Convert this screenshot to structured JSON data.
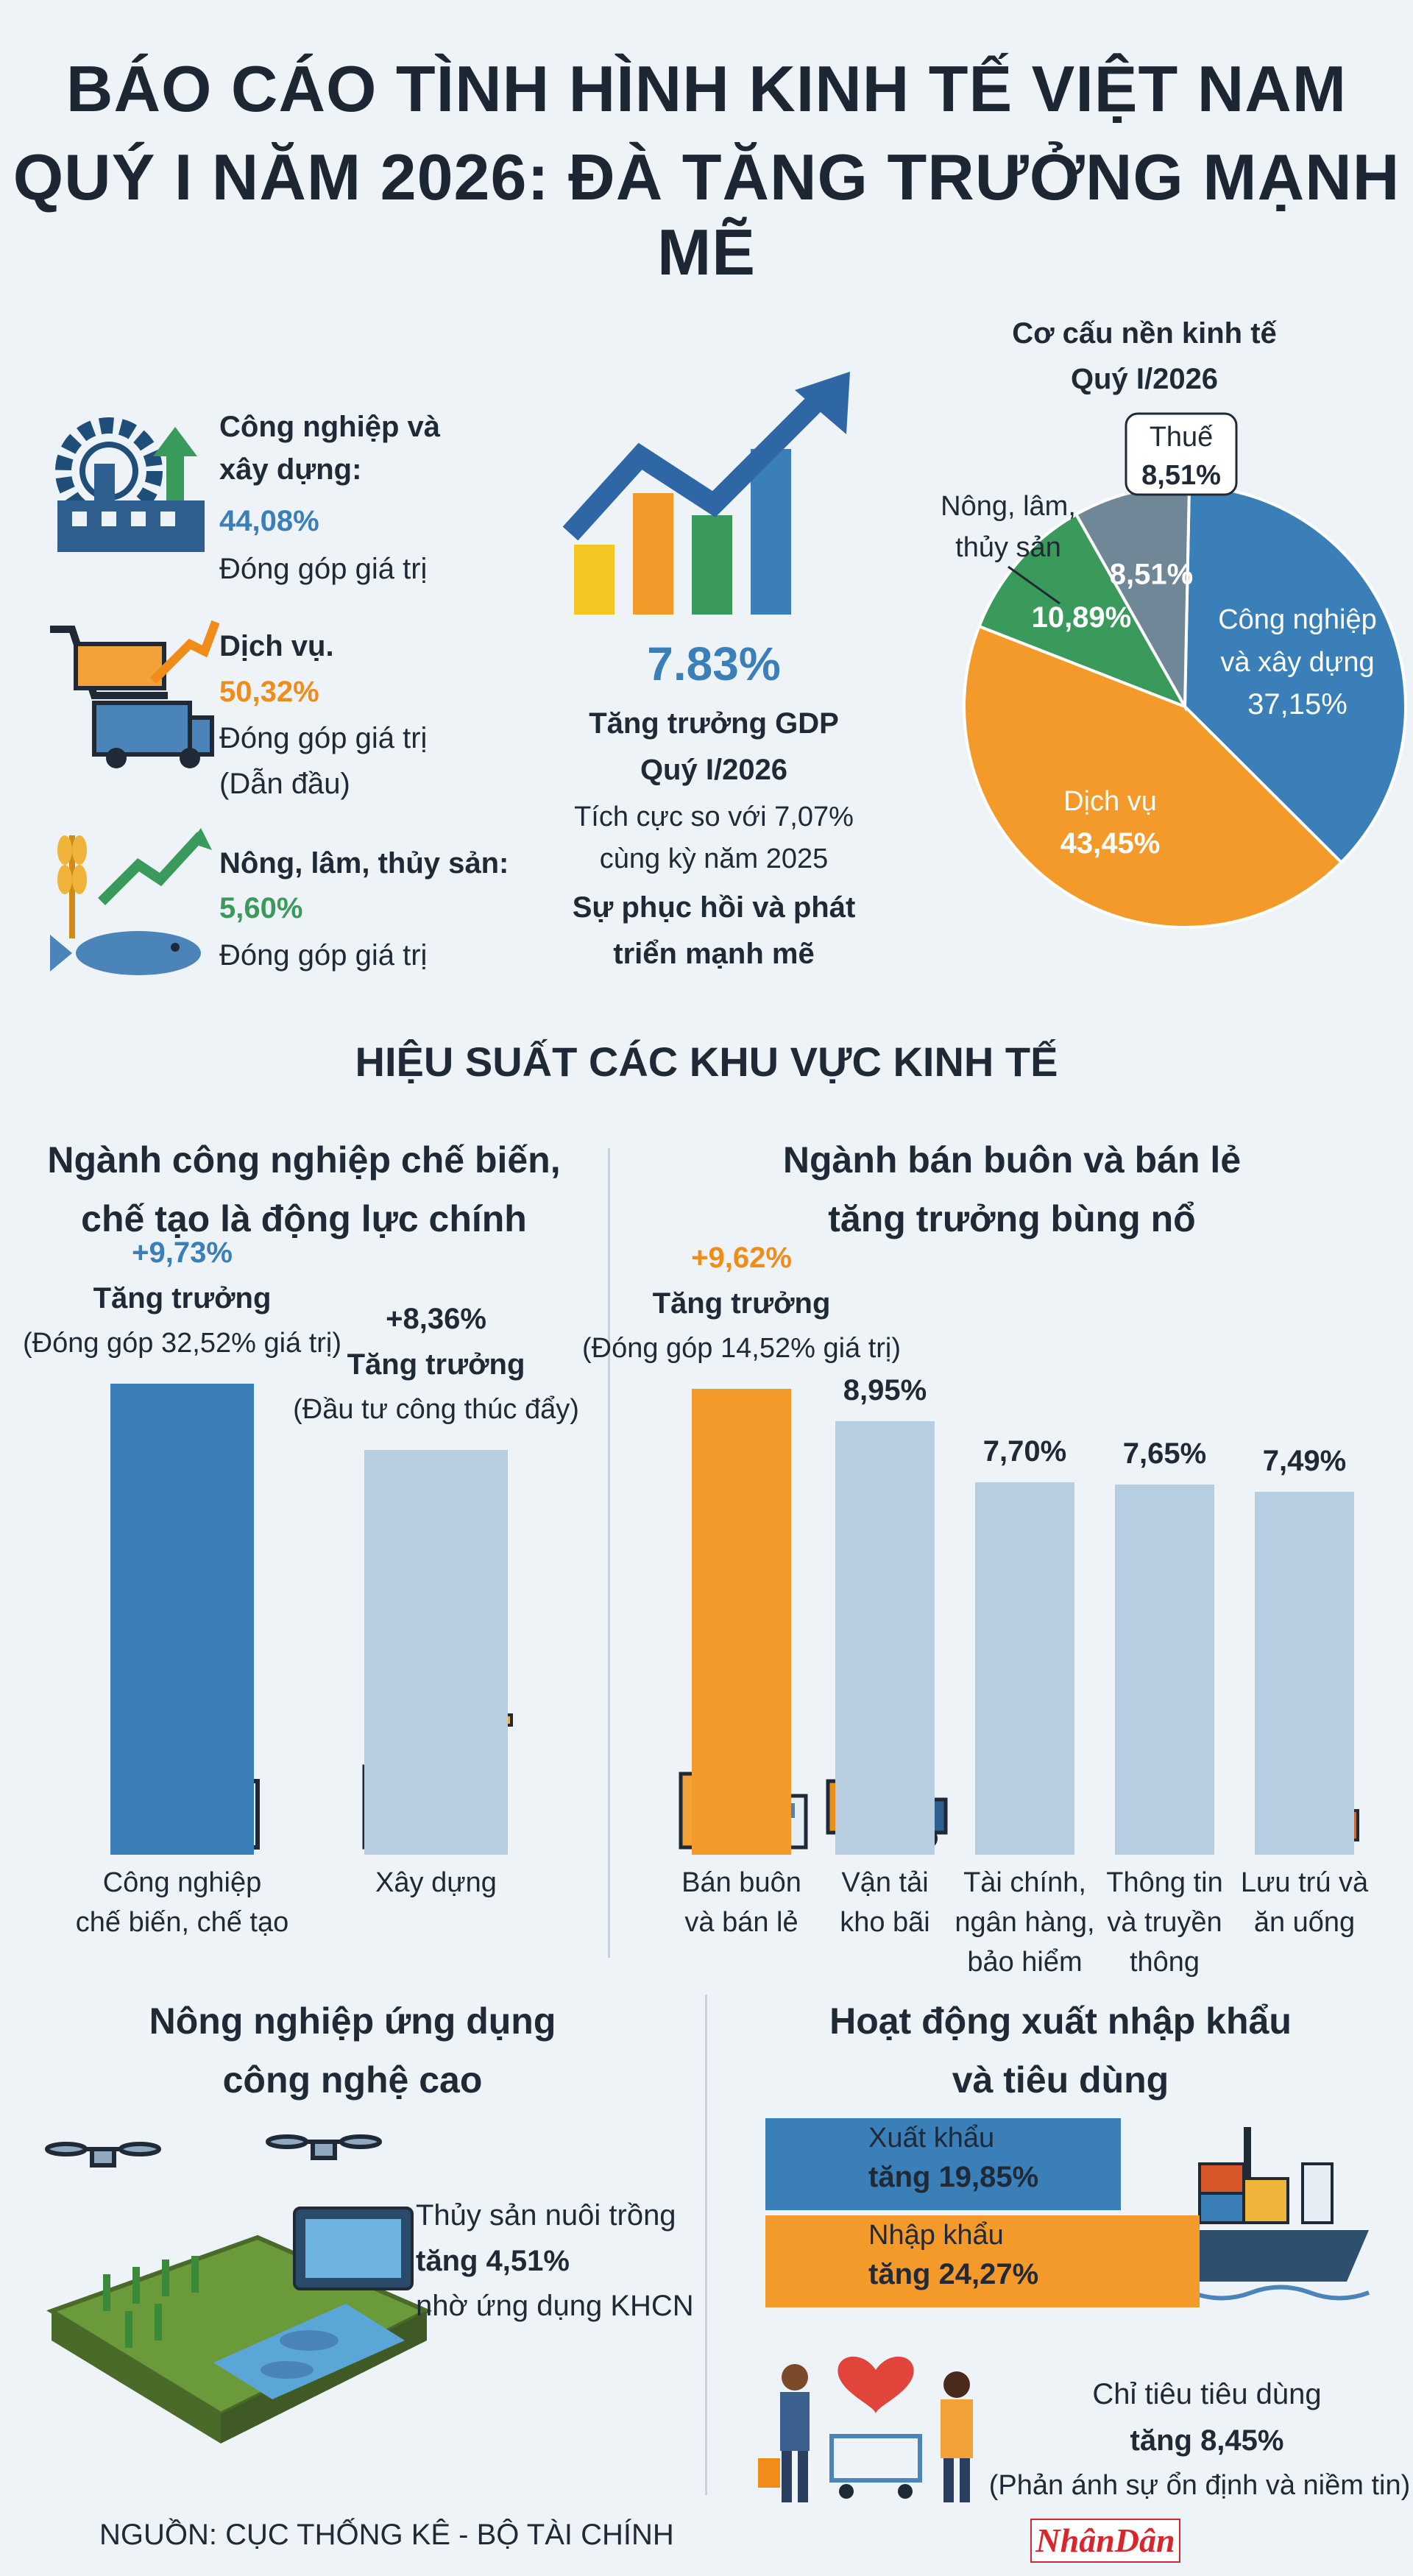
{
  "header": {
    "title_line1": "BÁO CÁO TÌNH HÌNH KINH TẾ VIỆT NAM",
    "title_line2": "QUÝ I NĂM 2026: ĐÀ TĂNG TRƯỞNG MẠNH MẼ"
  },
  "sectors": [
    {
      "name_line1": "Công nghiệp và",
      "name_line2": "xây dựng:",
      "value": "44,08%",
      "note": "Đóng góp giá trị",
      "note2": "",
      "icon": "factory-gear-icon"
    },
    {
      "name_line1": "Dịch vụ.",
      "name_line2": "",
      "value": "50,32%",
      "note": "Đóng góp giá trị",
      "note2": "(Dẫn đầu)",
      "icon": "cart-truck-icon"
    },
    {
      "name_line1": "Nông, lâm, thủy sản:",
      "name_line2": "",
      "value": "5,60%",
      "note": "Đóng góp giá trị",
      "note2": "",
      "icon": "wheat-fish-icon"
    }
  ],
  "gdp": {
    "value": "7.83%",
    "label_line1": "Tăng trưởng GDP",
    "label_line2": "Quý I/2026",
    "compare_line1": "Tích cực so với 7,07%",
    "compare_line2": "cùng kỳ năm 2025",
    "slogan_line1": "Sự phục hồi và phát",
    "slogan_line2": "triển mạnh mẽ"
  },
  "pie_title": {
    "line1": "Cơ cấu nền kinh tế",
    "line2": "Quý I/2026"
  },
  "colors": {
    "blue": "#3b7fb8",
    "orange": "#f39a2a",
    "green": "#3a9a5b",
    "gray": "#6f8796",
    "lightbar": "#b7cde0",
    "navy": "#1d2733"
  },
  "chart_data": [
    {
      "type": "pie",
      "title": "Cơ cấu nền kinh tế Quý I/2026",
      "slices": [
        {
          "name_line1": "Công nghiệp",
          "name_line2": "và xây dựng",
          "value": 37.15,
          "label": "37,15%",
          "color": "#3b7fb8"
        },
        {
          "name_line1": "Dịch vụ",
          "name_line2": "",
          "value": 43.45,
          "label": "43,45%",
          "color": "#f39a2a"
        },
        {
          "name_line1": "Nông, lâm,",
          "name_line2": "thủy sản",
          "value": 10.89,
          "label": "10,89%",
          "color": "#3a9a5b"
        },
        {
          "name_line1": "Thuế",
          "name_line2": "",
          "value": 8.51,
          "label": "8,51%",
          "color": "#6f8796"
        }
      ]
    },
    {
      "type": "bar",
      "title": "Ngành công nghiệp chế biến, chế tạo là động lực chính",
      "categories": [
        "Công nghiệp chế biến, chế tạo",
        "Xây dựng"
      ],
      "values": [
        9.73,
        8.36
      ]
    },
    {
      "type": "bar",
      "title": "Ngành bán buôn và bán lẻ tăng trưởng bùng nổ",
      "categories": [
        "Bán buôn và bán lẻ",
        "Vận tải kho bãi",
        "Tài chính, ngân hàng, bảo hiểm",
        "Thông tin và truyền thông",
        "Lưu trú và ăn uống"
      ],
      "values": [
        9.62,
        8.95,
        7.7,
        7.65,
        7.49
      ]
    },
    {
      "type": "bar",
      "title": "Hoạt động xuất nhập khẩu và tiêu dùng",
      "categories": [
        "Xuất khẩu",
        "Nhập khẩu"
      ],
      "values": [
        19.85,
        24.27
      ]
    }
  ],
  "performance": {
    "title": "HIỆU SUẤT CÁC KHU VỰC KINH TẾ",
    "left": {
      "title_line1": "Ngành công nghiệp chế biến,",
      "title_line2": "chế tạo là động lực chính",
      "bars": [
        {
          "pct": "+9,73%",
          "label": "Tăng trưởng",
          "note": "(Đóng góp 32,52% giá trị)",
          "cat_line1": "Công nghiệp",
          "cat_line2": "chế biến, chế tạo",
          "cat_line3": "",
          "icon": "factory-icon"
        },
        {
          "pct": "+8,36%",
          "label": "Tăng trưởng",
          "note": "(Đầu tư công thúc đẩy)",
          "cat_line1": "Xây dựng",
          "cat_line2": "",
          "cat_line3": "",
          "icon": "crane-icon"
        }
      ]
    },
    "right": {
      "title_line1": "Ngành bán buôn và bán lẻ",
      "title_line2": "tăng trưởng bùng nổ",
      "bars": [
        {
          "pct": "+9,62%",
          "label": "Tăng trưởng",
          "note": "(Đóng góp 14,52% giá trị)",
          "cat_line1": "Bán buôn",
          "cat_line2": "và bán lẻ",
          "cat_line3": "",
          "icon": "shopping-icon"
        },
        {
          "pct": "8,95%",
          "label": "",
          "note": "",
          "cat_line1": "Vận tải",
          "cat_line2": "kho bãi",
          "cat_line3": "",
          "icon": "truck-icon"
        },
        {
          "pct": "7,70%",
          "label": "",
          "note": "",
          "cat_line1": "Tài chính,",
          "cat_line2": "ngân hàng,",
          "cat_line3": "bảo hiểm",
          "icon": "coins-icon"
        },
        {
          "pct": "7,65%",
          "label": "",
          "note": "",
          "cat_line1": "Thông tin",
          "cat_line2": "và truyền",
          "cat_line3": "thông",
          "icon": "network-icon"
        },
        {
          "pct": "7,49%",
          "label": "",
          "note": "",
          "cat_line1": "Lưu trú và",
          "cat_line2": "ăn uống",
          "cat_line3": "",
          "icon": "bed-dining-icon"
        }
      ]
    }
  },
  "agri": {
    "title_line1": "Nông nghiệp ứng dụng",
    "title_line2": "công nghệ cao",
    "text_line1": "Thủy sản nuôi trồng",
    "text_line2": "tăng 4,51%",
    "text_line3": "nhờ ứng dụng KHCN"
  },
  "trade": {
    "title_line1": "Hoạt động xuất nhập khẩu",
    "title_line2": "và tiêu dùng",
    "export_label": "Xuất khẩu",
    "export_value": "tăng 19,85%",
    "import_label": "Nhập khẩu",
    "import_value": "tăng 24,27%",
    "consume_line1": "Chỉ tiêu tiêu dùng",
    "consume_line2": "tăng 8,45%",
    "consume_line3": "(Phản ánh sự ổn định và niềm tin)"
  },
  "footer": {
    "source": "NGUỒN: CỤC THỐNG KÊ - BỘ TÀI CHÍNH",
    "logo": "NhânDân"
  }
}
